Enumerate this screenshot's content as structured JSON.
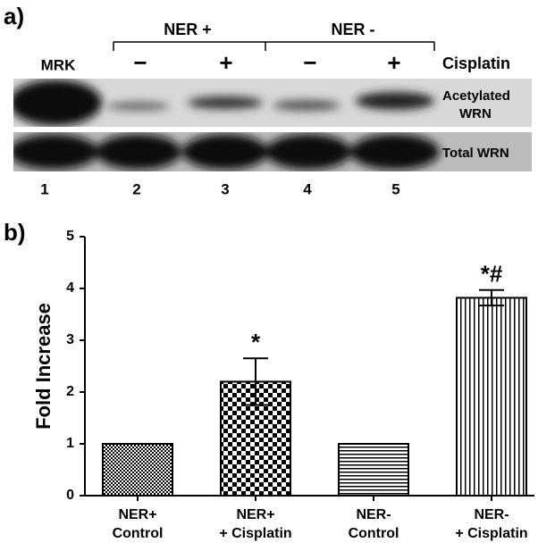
{
  "blot": {
    "label": "a)",
    "groups": [
      "NER +",
      "NER -"
    ],
    "marker": "MRK",
    "treatments": [
      "−",
      "+",
      "−",
      "+"
    ],
    "treatment_label": "Cisplatin",
    "rows": [
      [
        "Acetylated",
        "WRN"
      ],
      [
        "Total WRN"
      ]
    ],
    "lanes": [
      "1",
      "2",
      "3",
      "4",
      "5"
    ]
  },
  "chart_data": {
    "type": "bar",
    "label": "b)",
    "ylabel": "Fold Increase",
    "categories": [
      [
        "NER+",
        "Control"
      ],
      [
        "NER+",
        "+ Cisplatin"
      ],
      [
        "NER-",
        "Control"
      ],
      [
        "NER-",
        "+ Cisplatin"
      ]
    ],
    "values": [
      1,
      2.2,
      1,
      3.82
    ],
    "errors": [
      0,
      0.45,
      0,
      0.15
    ],
    "significance": [
      null,
      "*",
      null,
      "*#"
    ],
    "color": "#000000",
    "ylim": [
      0,
      5
    ],
    "yticks": [
      0,
      1,
      2,
      3,
      4,
      5
    ]
  }
}
